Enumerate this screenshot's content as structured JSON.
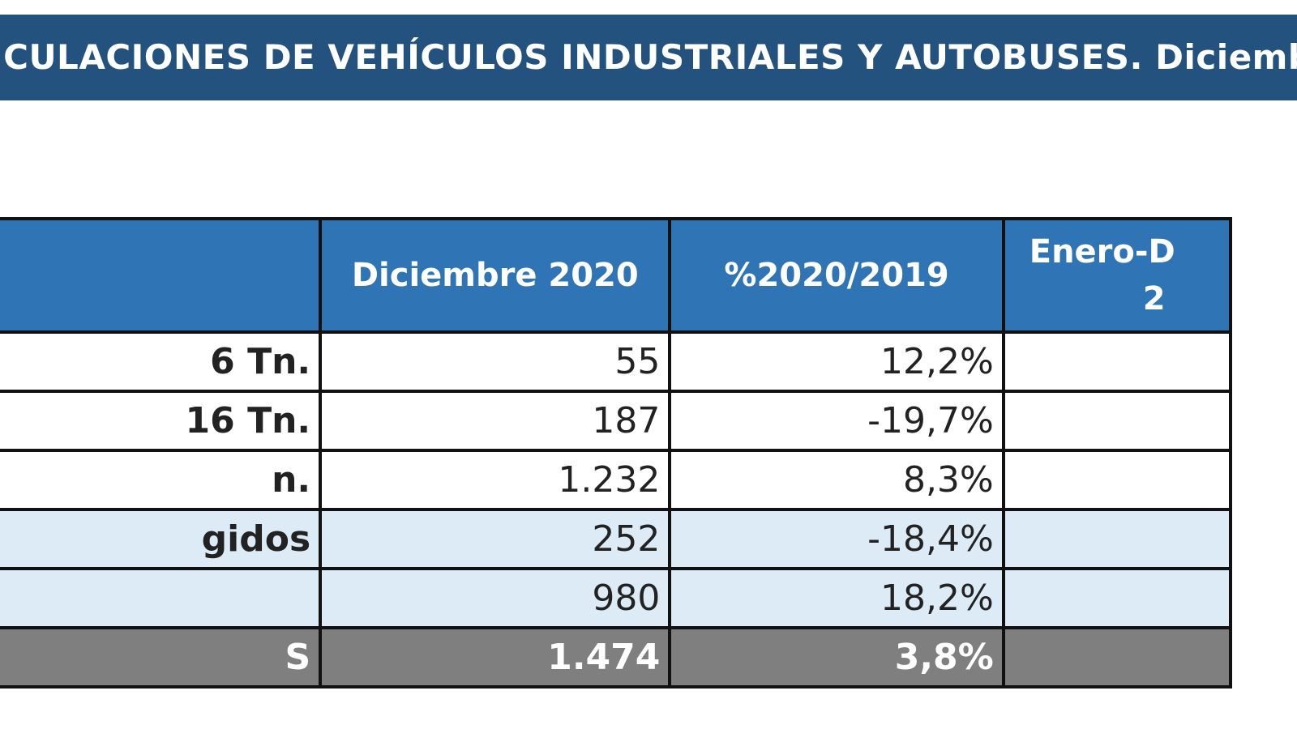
{
  "title": "ICULACIONES DE VEHÍCULOS INDUSTRIALES Y AUTOBUSES.  Diciembre",
  "table": {
    "headers": [
      "",
      "Diciembre 2020",
      "%2020/2019",
      "Enero-D\n2"
    ],
    "rows": [
      {
        "label": "6 Tn.",
        "dic2020": "55",
        "pct": "12,2%",
        "style": "white"
      },
      {
        "label": "16 Tn.",
        "dic2020": "187",
        "pct": "-19,7%",
        "style": "white"
      },
      {
        "label": "n.",
        "dic2020": "1.232",
        "pct": "8,3%",
        "style": "white"
      },
      {
        "label": "gidos",
        "dic2020": "252",
        "pct": "-18,4%",
        "style": "light"
      },
      {
        "label": "",
        "dic2020": "980",
        "pct": "18,2%",
        "style": "light"
      },
      {
        "label": "S",
        "dic2020": "1.474",
        "pct": "3,8%",
        "style": "total"
      }
    ]
  },
  "colors": {
    "title_bg": "#24527f",
    "header_bg": "#2f75b5",
    "light_row_bg": "#ddebf7",
    "total_bg": "#7f7f7f"
  }
}
